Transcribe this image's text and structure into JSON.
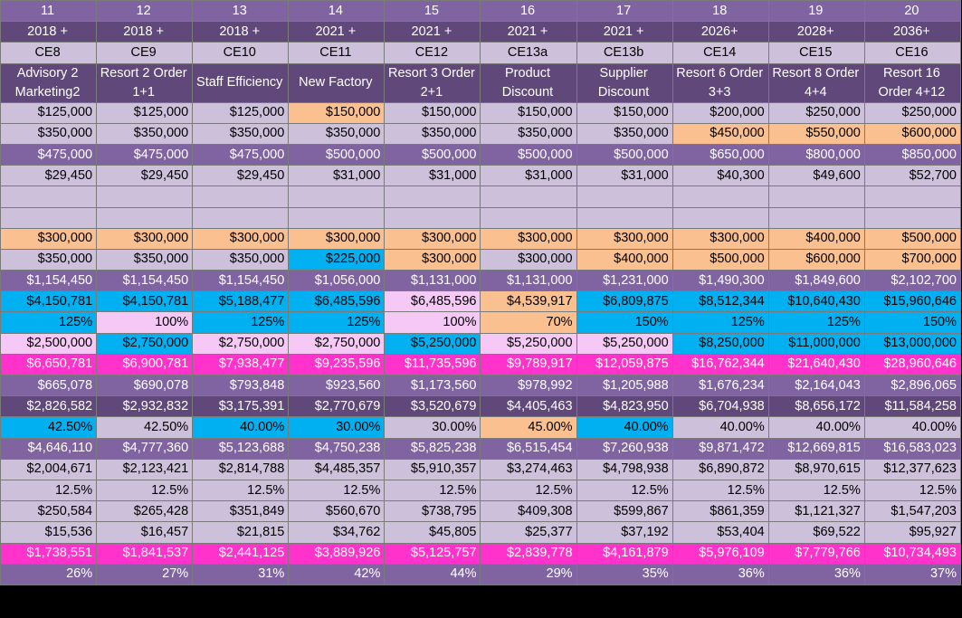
{
  "colors": {
    "purple": "#8064a2",
    "dark": "#60497a",
    "lilac": "#ccc0da",
    "peach": "#fac090",
    "blue": "#00b0f0",
    "pink": "#f5c8f5",
    "magenta": "#ff33cc"
  },
  "rows": [
    {
      "style": "hdr",
      "align": "c",
      "bg": "#8064a2",
      "cells": [
        "11",
        "12",
        "13",
        "14",
        "15",
        "16",
        "17",
        "18",
        "19",
        "20"
      ]
    },
    {
      "style": "hdr",
      "align": "c",
      "bg": "#60497a",
      "cells": [
        "2018 +",
        "2018 +",
        "2018 +",
        "2021 +",
        "2021 +",
        "2021 +",
        "2021 +",
        "2026+",
        "2028+",
        "2036+"
      ]
    },
    {
      "style": "",
      "align": "c",
      "bg": "#ccc0da",
      "cells": [
        "CE8",
        "CE9",
        "CE10",
        "CE11",
        "CE12",
        "CE13a",
        "CE13b",
        "CE14",
        "CE15",
        "CE16"
      ]
    },
    {
      "style": "hdr two",
      "align": "c",
      "bg": "#60497a",
      "cells": [
        "Advisory 2 Marketing2",
        "Resort 2 Order 1+1",
        "Staff Efficiency",
        "New Factory",
        "Resort 3 Order 2+1",
        "Product Discount",
        "Supplier Discount",
        "Resort 6 Order 3+3",
        "Resort 8 Order 4+4",
        "Resort 16 Order 4+12"
      ]
    },
    {
      "bg": "#ccc0da",
      "cells": [
        "$125,000",
        "$125,000",
        "$125,000",
        "$150,000",
        "$150,000",
        "$150,000",
        "$150,000",
        "$200,000",
        "$250,000",
        "$250,000"
      ],
      "cbg": {
        "3": "#fac090"
      }
    },
    {
      "bg": "#ccc0da",
      "cells": [
        "$350,000",
        "$350,000",
        "$350,000",
        "$350,000",
        "$350,000",
        "$350,000",
        "$350,000",
        "$450,000",
        "$550,000",
        "$600,000"
      ],
      "cbg": {
        "7": "#fac090",
        "8": "#fac090",
        "9": "#fac090"
      }
    },
    {
      "style": "hdr",
      "bg": "#8064a2",
      "cells": [
        "$475,000",
        "$475,000",
        "$475,000",
        "$500,000",
        "$500,000",
        "$500,000",
        "$500,000",
        "$650,000",
        "$800,000",
        "$850,000"
      ]
    },
    {
      "bg": "#ccc0da",
      "cells": [
        "$29,450",
        "$29,450",
        "$29,450",
        "$31,000",
        "$31,000",
        "$31,000",
        "$31,000",
        "$40,300",
        "$49,600",
        "$52,700"
      ]
    },
    {
      "bg": "#ccc0da",
      "cells": [
        "",
        "",
        "",
        "",
        "",
        "",
        "",
        "",
        "",
        ""
      ]
    },
    {
      "bg": "#ccc0da",
      "cells": [
        "",
        "",
        "",
        "",
        "",
        "",
        "",
        "",
        "",
        ""
      ]
    },
    {
      "bg": "#fac090",
      "cells": [
        "$300,000",
        "$300,000",
        "$300,000",
        "$300,000",
        "$300,000",
        "$300,000",
        "$300,000",
        "$300,000",
        "$400,000",
        "$500,000"
      ]
    },
    {
      "bg": "#ccc0da",
      "cells": [
        "$350,000",
        "$350,000",
        "$350,000",
        "$225,000",
        "$300,000",
        "$300,000",
        "$400,000",
        "$500,000",
        "$600,000",
        "$700,000"
      ],
      "cbg": {
        "3": "#00b0f0",
        "4": "#fac090",
        "6": "#fac090",
        "7": "#fac090",
        "8": "#fac090",
        "9": "#fac090"
      }
    },
    {
      "style": "hdr",
      "bg": "#8064a2",
      "cells": [
        "$1,154,450",
        "$1,154,450",
        "$1,154,450",
        "$1,056,000",
        "$1,131,000",
        "$1,131,000",
        "$1,231,000",
        "$1,490,300",
        "$1,849,600",
        "$2,102,700"
      ]
    },
    {
      "bg": "#00b0f0",
      "cells": [
        "$4,150,781",
        "$4,150,781",
        "$5,188,477",
        "$6,485,596",
        "$6,485,596",
        "$4,539,917",
        "$6,809,875",
        "$8,512,344",
        "$10,640,430",
        "$15,960,646"
      ],
      "cbg": {
        "4": "#f5c8f5",
        "5": "#fac090"
      }
    },
    {
      "bg": "#00b0f0",
      "cells": [
        "125%",
        "100%",
        "125%",
        "125%",
        "100%",
        "70%",
        "150%",
        "125%",
        "125%",
        "150%"
      ],
      "cbg": {
        "1": "#f5c8f5",
        "4": "#f5c8f5",
        "5": "#fac090"
      }
    },
    {
      "bg": "#f5c8f5",
      "cells": [
        "$2,500,000",
        "$2,750,000",
        "$2,750,000",
        "$2,750,000",
        "$5,250,000",
        "$5,250,000",
        "$5,250,000",
        "$8,250,000",
        "$11,000,000",
        "$13,000,000"
      ],
      "cbg": {
        "1": "#00b0f0",
        "4": "#00b0f0",
        "7": "#00b0f0",
        "8": "#00b0f0",
        "9": "#00b0f0"
      }
    },
    {
      "style": "hdr",
      "bg": "#ff33cc",
      "cells": [
        "$6,650,781",
        "$6,900,781",
        "$7,938,477",
        "$9,235,596",
        "$11,735,596",
        "$9,789,917",
        "$12,059,875",
        "$16,762,344",
        "$21,640,430",
        "$28,960,646"
      ]
    },
    {
      "style": "hdr",
      "bg": "#8064a2",
      "cells": [
        "$665,078",
        "$690,078",
        "$793,848",
        "$923,560",
        "$1,173,560",
        "$978,992",
        "$1,205,988",
        "$1,676,234",
        "$2,164,043",
        "$2,896,065"
      ]
    },
    {
      "style": "hdr",
      "bg": "#60497a",
      "cells": [
        "$2,826,582",
        "$2,932,832",
        "$3,175,391",
        "$2,770,679",
        "$3,520,679",
        "$4,405,463",
        "$4,823,950",
        "$6,704,938",
        "$8,656,172",
        "$11,584,258"
      ]
    },
    {
      "bg": "#ccc0da",
      "cells": [
        "42.50%",
        "42.50%",
        "40.00%",
        "30.00%",
        "30.00%",
        "45.00%",
        "40.00%",
        "40.00%",
        "40.00%",
        "40.00%"
      ],
      "cbg": {
        "0": "#00b0f0",
        "2": "#00b0f0",
        "3": "#00b0f0",
        "5": "#fac090",
        "6": "#00b0f0"
      }
    },
    {
      "style": "hdr",
      "bg": "#8064a2",
      "cells": [
        "$4,646,110",
        "$4,777,360",
        "$5,123,688",
        "$4,750,238",
        "$5,825,238",
        "$6,515,454",
        "$7,260,938",
        "$9,871,472",
        "$12,669,815",
        "$16,583,023"
      ]
    },
    {
      "bg": "#ccc0da",
      "cells": [
        "$2,004,671",
        "$2,123,421",
        "$2,814,788",
        "$4,485,357",
        "$5,910,357",
        "$3,274,463",
        "$4,798,938",
        "$6,890,872",
        "$8,970,615",
        "$12,377,623"
      ]
    },
    {
      "bg": "#ccc0da",
      "cells": [
        "12.5%",
        "12.5%",
        "12.5%",
        "12.5%",
        "12.5%",
        "12.5%",
        "12.5%",
        "12.5%",
        "12.5%",
        "12.5%"
      ]
    },
    {
      "bg": "#ccc0da",
      "cells": [
        "$250,584",
        "$265,428",
        "$351,849",
        "$560,670",
        "$738,795",
        "$409,308",
        "$599,867",
        "$861,359",
        "$1,121,327",
        "$1,547,203"
      ]
    },
    {
      "bg": "#ccc0da",
      "cells": [
        "$15,536",
        "$16,457",
        "$21,815",
        "$34,762",
        "$45,805",
        "$25,377",
        "$37,192",
        "$53,404",
        "$69,522",
        "$95,927"
      ]
    },
    {
      "style": "hdr",
      "bg": "#ff33cc",
      "cells": [
        "$1,738,551",
        "$1,841,537",
        "$2,441,125",
        "$3,889,926",
        "$5,125,757",
        "$2,839,778",
        "$4,161,879",
        "$5,976,109",
        "$7,779,766",
        "$10,734,493"
      ]
    },
    {
      "style": "hdr",
      "bg": "#8064a2",
      "cells": [
        "26%",
        "27%",
        "31%",
        "42%",
        "44%",
        "29%",
        "35%",
        "36%",
        "36%",
        "37%"
      ]
    }
  ]
}
